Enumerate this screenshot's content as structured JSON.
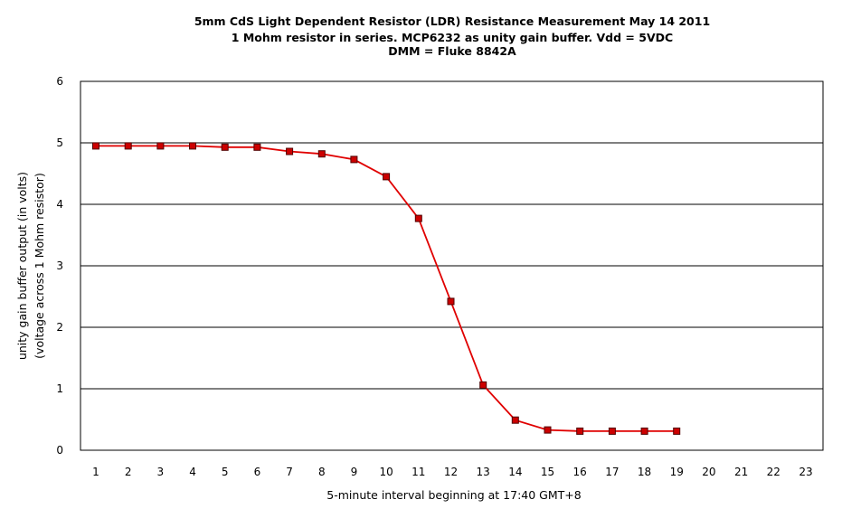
{
  "chart_data": {
    "type": "line",
    "title_lines": [
      "5mm CdS Light Dependent Resistor (LDR) Resistance Measurement  May 14 2011",
      "1 Mohm resistor in series. MCP6232 as unity gain buffer. Vdd = 5VDC",
      "DMM = Fluke 8842A"
    ],
    "xlabel": "5-minute interval beginning at 17:40 GMT+8",
    "ylabel_lines": [
      "unity gain buffer output (in volts)",
      "(voltage across 1 Mohm resistor)"
    ],
    "x_ticks": [
      "1",
      "2",
      "3",
      "4",
      "5",
      "6",
      "7",
      "8",
      "9",
      "10",
      "11",
      "12",
      "13",
      "14",
      "15",
      "16",
      "17",
      "18",
      "19",
      "20",
      "21",
      "22",
      "23"
    ],
    "y_ticks": [
      "0",
      "1",
      "2",
      "3",
      "4",
      "5",
      "6"
    ],
    "ylim": [
      0,
      6
    ],
    "grid": "horizontal",
    "legend": "none",
    "series": [
      {
        "color": "#e00000",
        "marker_color": "#cc0000",
        "marker": "square",
        "x": [
          1,
          2,
          3,
          4,
          5,
          6,
          7,
          8,
          9,
          10,
          11,
          12,
          13,
          14,
          15,
          16,
          17,
          18,
          19
        ],
        "values": [
          4.95,
          4.95,
          4.95,
          4.95,
          4.93,
          4.93,
          4.86,
          4.82,
          4.73,
          4.45,
          3.77,
          2.42,
          1.06,
          0.49,
          0.33,
          0.31,
          0.31,
          0.31,
          0.31
        ]
      }
    ]
  }
}
